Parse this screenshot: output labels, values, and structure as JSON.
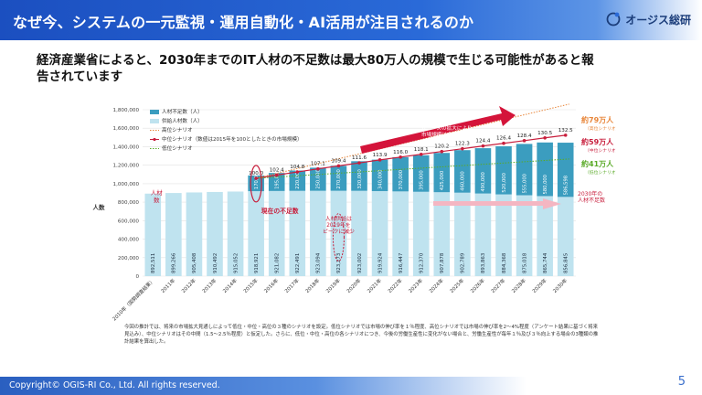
{
  "header": {
    "title": "なぜ今、システムの一元監視・運用自動化・AI活用が注目されるのか"
  },
  "logo": {
    "text": "オージス総研",
    "icon": "ogis-mark-icon"
  },
  "lead_text": "経済産業省によると、2030年までのIT人材の不足数は最大80万人の規模で生じる可能性があると報告されています",
  "footnote": "今回の推計では、将来の市場拡大見通しによって低位・中位・高位の３種のシナリオを設定。低位シナリオでは市場の伸び率を１％程度、高位シナリオでは市場の伸び率を2～4%程度（アンケート結果に基づく将来見込み）、中位シナリオはその中間（1.5～2.5％程度）と仮定した。さらに、低位・中位・高位の各シナリオにつき、今後の労働生産性に変化がない場合と、労働生産性が毎年１％及び３％向上する場合の3種類の推計結果を算出した。",
  "footer": {
    "copyright": "Copyright© OGIS-RI Co., Ltd.  All rights reserved.",
    "page": "5"
  },
  "colors": {
    "shortage": "#3b9dbf",
    "supply": "#bfe3ef",
    "index_line": "#c81e3c",
    "high": "#e8863a",
    "low": "#5aaa28",
    "arrow": "#d4143a"
  },
  "chart_data": {
    "type": "bar",
    "ylabel": "人数",
    "ylim": [
      0,
      1800000
    ],
    "yticks": [
      "0",
      "200,000",
      "400,000",
      "600,000",
      "800,000",
      "1,000,000",
      "1,200,000",
      "1,400,000",
      "1,600,000",
      "1,800,000"
    ],
    "categories": [
      "2010年（国勢調査結果）",
      "2011年",
      "2012年",
      "2013年",
      "2014年",
      "2015年",
      "2016年",
      "2017年",
      "2018年",
      "2019年",
      "2020年",
      "2021年",
      "2022年",
      "2023年",
      "2024年",
      "2025年",
      "2026年",
      "2027年",
      "2028年",
      "2029年",
      "2030年"
    ],
    "supply": [
      892511,
      899266,
      905408,
      910492,
      915052,
      918921,
      921082,
      922491,
      923094,
      923273,
      923002,
      919924,
      916447,
      912370,
      907878,
      902789,
      893863,
      884368,
      875018,
      865744,
      856845
    ],
    "shortage_labels": [
      "",
      "",
      "",
      "",
      "",
      "170,000",
      "",
      "",
      "",
      "",
      "",
      "",
      "",
      "",
      "",
      "",
      "",
      "",
      "",
      "",
      "586,598"
    ],
    "shortage": [
      null,
      null,
      null,
      null,
      null,
      170000,
      195000,
      220000,
      250000,
      270000,
      320000,
      340000,
      370000,
      395000,
      425000,
      460000,
      490000,
      520000,
      555000,
      580000,
      586598
    ],
    "index_labels": [
      "",
      "",
      "",
      "",
      "",
      "100.0",
      "102.4",
      "104.8",
      "107.1",
      "109.4",
      "111.6",
      "113.9",
      "116.0",
      "118.1",
      "120.2",
      "122.3",
      "124.4",
      "126.4",
      "128.4",
      "130.5",
      "132.5"
    ],
    "index_values": [
      null,
      null,
      null,
      null,
      null,
      100.0,
      102.4,
      104.8,
      107.1,
      109.4,
      111.6,
      113.9,
      116.0,
      118.1,
      120.2,
      122.3,
      124.4,
      126.4,
      128.4,
      130.5,
      132.5
    ],
    "legend": [
      "人材不足数（人）",
      "供給人材数（人）",
      "高位シナリオ",
      "中位シナリオ（数値は2015年を100としたときの市場規模）",
      "低位シナリオ"
    ],
    "annotations": {
      "left_bar_label": "人材\n数",
      "current_shortage": "現在の不足数",
      "supply_peak": "人材供給は\n2019年を\nピークに減少",
      "market_growth": "ITニーズの拡大により\n市場規模は今後も拡大",
      "high_value": "約79万人",
      "high_caption": "（高位シナリオ）",
      "mid_value": "約59万人",
      "mid_caption": "（中位シナリオ）",
      "low_value": "約41万人",
      "low_caption": "（低位シナリオ）",
      "shortage_2030": "2030年の\n人材不足数"
    }
  }
}
